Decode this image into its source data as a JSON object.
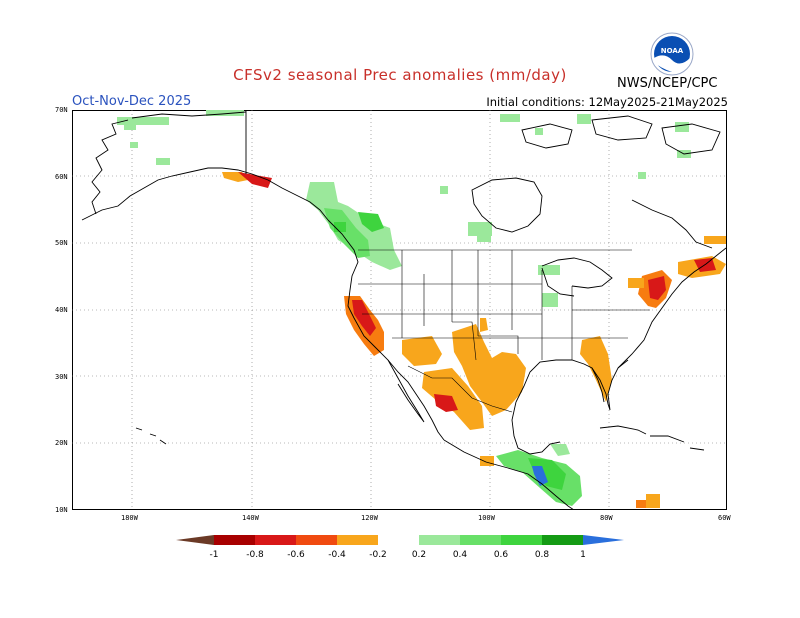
{
  "header": {
    "title": "CFSv2 seasonal Prec anomalies (mm/day)",
    "period": "Oct-Nov-Dec 2025",
    "initial_conditions": "Initial conditions: 12May2025-21May2025",
    "agency": "NWS/NCEP/CPC",
    "logo_text": "NOAA"
  },
  "colors": {
    "title": "#c8302a",
    "period": "#2a52be",
    "text": "#000000",
    "brown": "#6b3a26",
    "darkred": "#a80000",
    "red": "#d81818",
    "redorange": "#f04a10",
    "orange": "#f77c10",
    "amber": "#f8a61c",
    "lightgreen": "#9be89b",
    "green1": "#68e068",
    "green2": "#3ed43e",
    "green3": "#20b820",
    "green4": "#149b14",
    "blue": "#2a6fdc",
    "logo_blue": "#0a4fb3"
  },
  "axes": {
    "lat_ticks": [
      "70N",
      "60N",
      "50N",
      "40N",
      "30N",
      "20N",
      "10N"
    ],
    "lon_ticks": [
      "180W",
      "140W",
      "120W",
      "100W",
      "80W",
      "60W"
    ]
  },
  "colorbar": {
    "labels": [
      "-1",
      "-0.8",
      "-0.6",
      "-0.4",
      "-0.2",
      "0.2",
      "0.4",
      "0.6",
      "0.8",
      "1"
    ]
  }
}
